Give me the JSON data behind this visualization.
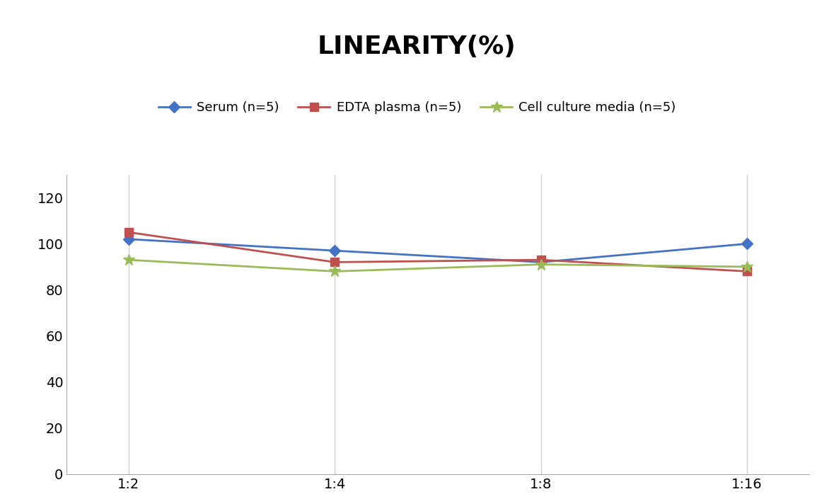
{
  "title": "LINEARITY(%)",
  "x_labels": [
    "1:2",
    "1:4",
    "1:8",
    "1:16"
  ],
  "x_positions": [
    0,
    1,
    2,
    3
  ],
  "series": [
    {
      "label": "Serum (n=5)",
      "values": [
        102,
        97,
        92,
        100
      ],
      "color": "#4472C4",
      "marker": "D",
      "marker_size": 8,
      "linewidth": 2
    },
    {
      "label": "EDTA plasma (n=5)",
      "values": [
        105,
        92,
        93,
        88
      ],
      "color": "#C0504D",
      "marker": "s",
      "marker_size": 8,
      "linewidth": 2
    },
    {
      "label": "Cell culture media (n=5)",
      "values": [
        93,
        88,
        91,
        90
      ],
      "color": "#9BBB59",
      "marker": "*",
      "marker_size": 12,
      "linewidth": 2
    }
  ],
  "ylim": [
    0,
    130
  ],
  "yticks": [
    0,
    20,
    40,
    60,
    80,
    100,
    120
  ],
  "background_color": "#ffffff",
  "grid_color": "#d0d0d0",
  "title_fontsize": 26,
  "legend_fontsize": 13,
  "tick_fontsize": 14
}
